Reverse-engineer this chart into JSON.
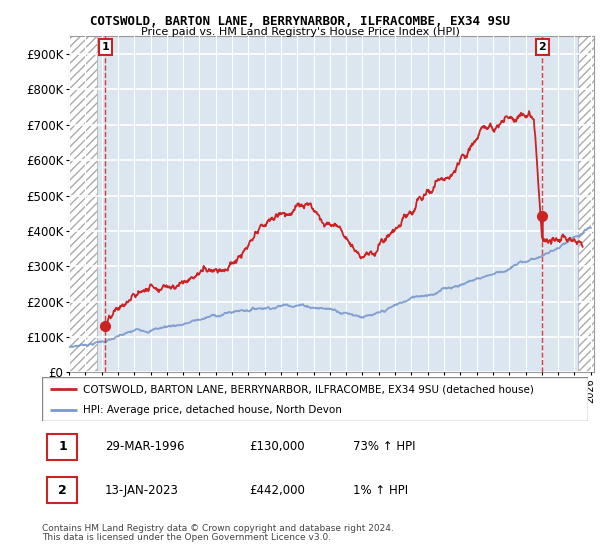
{
  "title": "COTSWOLD, BARTON LANE, BERRYNARBOR, ILFRACOMBE, EX34 9SU",
  "subtitle": "Price paid vs. HM Land Registry's House Price Index (HPI)",
  "ylabel_ticks": [
    "£0",
    "£100K",
    "£200K",
    "£300K",
    "£400K",
    "£500K",
    "£600K",
    "£700K",
    "£800K",
    "£900K"
  ],
  "ytick_vals": [
    0,
    100000,
    200000,
    300000,
    400000,
    500000,
    600000,
    700000,
    800000,
    900000
  ],
  "ylim": [
    0,
    950000
  ],
  "xlim_start": 1994.0,
  "xlim_end": 2026.2,
  "hpi_color": "#7799cc",
  "price_color": "#cc2222",
  "point1_x": 1996.23,
  "point1_y": 130000,
  "point2_x": 2023.04,
  "point2_y": 442000,
  "legend_line1": "COTSWOLD, BARTON LANE, BERRYNARBOR, ILFRACOMBE, EX34 9SU (detached house)",
  "legend_line2": "HPI: Average price, detached house, North Devon",
  "table_row1_num": "1",
  "table_row1_date": "29-MAR-1996",
  "table_row1_price": "£130,000",
  "table_row1_hpi": "73% ↑ HPI",
  "table_row2_num": "2",
  "table_row2_date": "13-JAN-2023",
  "table_row2_price": "£442,000",
  "table_row2_hpi": "1% ↑ HPI",
  "footnote1": "Contains HM Land Registry data © Crown copyright and database right 2024.",
  "footnote2": "This data is licensed under the Open Government Licence v3.0.",
  "plot_bg_color": "#dce6f0",
  "hatch_bg_color": "#ffffff"
}
